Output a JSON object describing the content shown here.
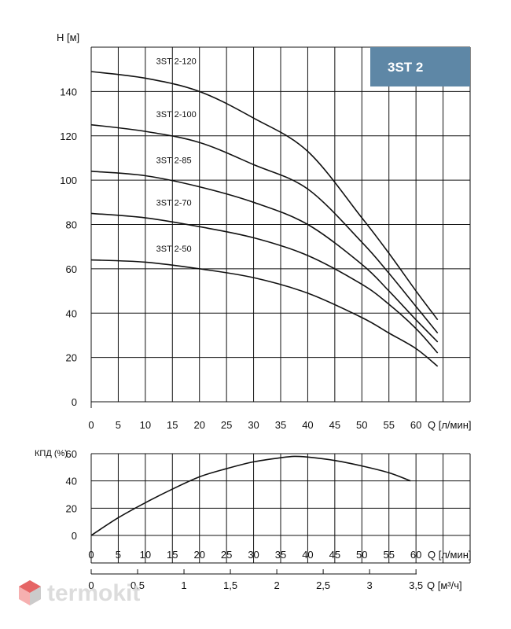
{
  "chart_data": [
    {
      "type": "line",
      "badge": "3ST 2",
      "ylabel": "H [м]",
      "xlabel": "Q [л/мин]",
      "xlim": [
        0,
        70
      ],
      "ylim": [
        0,
        160
      ],
      "xticks": [
        0,
        5,
        10,
        15,
        20,
        25,
        30,
        35,
        40,
        45,
        50,
        55,
        60
      ],
      "yticks": [
        0,
        20,
        40,
        60,
        80,
        100,
        120,
        140
      ],
      "grid": true,
      "series": [
        {
          "name": "3ST 2-120",
          "x": [
            0,
            10,
            20,
            30,
            40,
            50,
            55,
            60,
            64
          ],
          "y": [
            149,
            146,
            140,
            128,
            113,
            83,
            67,
            50,
            37
          ]
        },
        {
          "name": "3ST 2-100",
          "x": [
            0,
            10,
            20,
            30,
            40,
            50,
            55,
            60,
            64
          ],
          "y": [
            125,
            122,
            117,
            107,
            96,
            72,
            58,
            43,
            31
          ]
        },
        {
          "name": "3ST 2-85",
          "x": [
            0,
            10,
            20,
            30,
            40,
            50,
            55,
            60,
            64
          ],
          "y": [
            104,
            102,
            97,
            90,
            80,
            62,
            50,
            37,
            27
          ]
        },
        {
          "name": "3ST 2-70",
          "x": [
            0,
            10,
            20,
            30,
            40,
            50,
            55,
            60,
            64
          ],
          "y": [
            85,
            83,
            79,
            74,
            66,
            53,
            44,
            33,
            22
          ]
        },
        {
          "name": "3ST 2-50",
          "x": [
            0,
            10,
            20,
            30,
            40,
            50,
            55,
            60,
            64
          ],
          "y": [
            64,
            63,
            60,
            56,
            49,
            38,
            31,
            24,
            16
          ]
        }
      ]
    },
    {
      "type": "line",
      "ylabel": "КПД (%)",
      "xlabel": "Q [л/мин]",
      "x2label": "Q [м³/ч]",
      "xlim": [
        0,
        70
      ],
      "ylim": [
        0,
        60
      ],
      "xticks": [
        0,
        5,
        10,
        15,
        20,
        25,
        30,
        35,
        40,
        45,
        50,
        55,
        60
      ],
      "yticks": [
        0,
        20,
        40,
        60
      ],
      "x2ticks": [
        {
          "value": 0,
          "label": "0"
        },
        {
          "value": 0.5,
          "label": "0,5"
        },
        {
          "value": 1,
          "label": "1"
        },
        {
          "value": 1.5,
          "label": "1,5"
        },
        {
          "value": 2,
          "label": "2"
        },
        {
          "value": 2.5,
          "label": "2,5"
        },
        {
          "value": 3,
          "label": "3"
        },
        {
          "value": 3.5,
          "label": "3,5"
        }
      ],
      "grid": true,
      "series": [
        {
          "x": [
            0,
            5,
            10,
            15,
            20,
            25,
            30,
            35,
            37.5,
            40,
            45,
            50,
            55,
            59
          ],
          "y": [
            0,
            13,
            24,
            34,
            43,
            49,
            54,
            57,
            58,
            57.5,
            55,
            51,
            46,
            40
          ]
        }
      ]
    }
  ],
  "watermark": {
    "text": "termokit",
    "logo": "cube-logo-icon",
    "colors": [
      "#e14b4b",
      "#f5a3a3",
      "#c2c2c2"
    ]
  },
  "colors": {
    "badge_bg": "#5e87a6",
    "line": "#111111"
  }
}
